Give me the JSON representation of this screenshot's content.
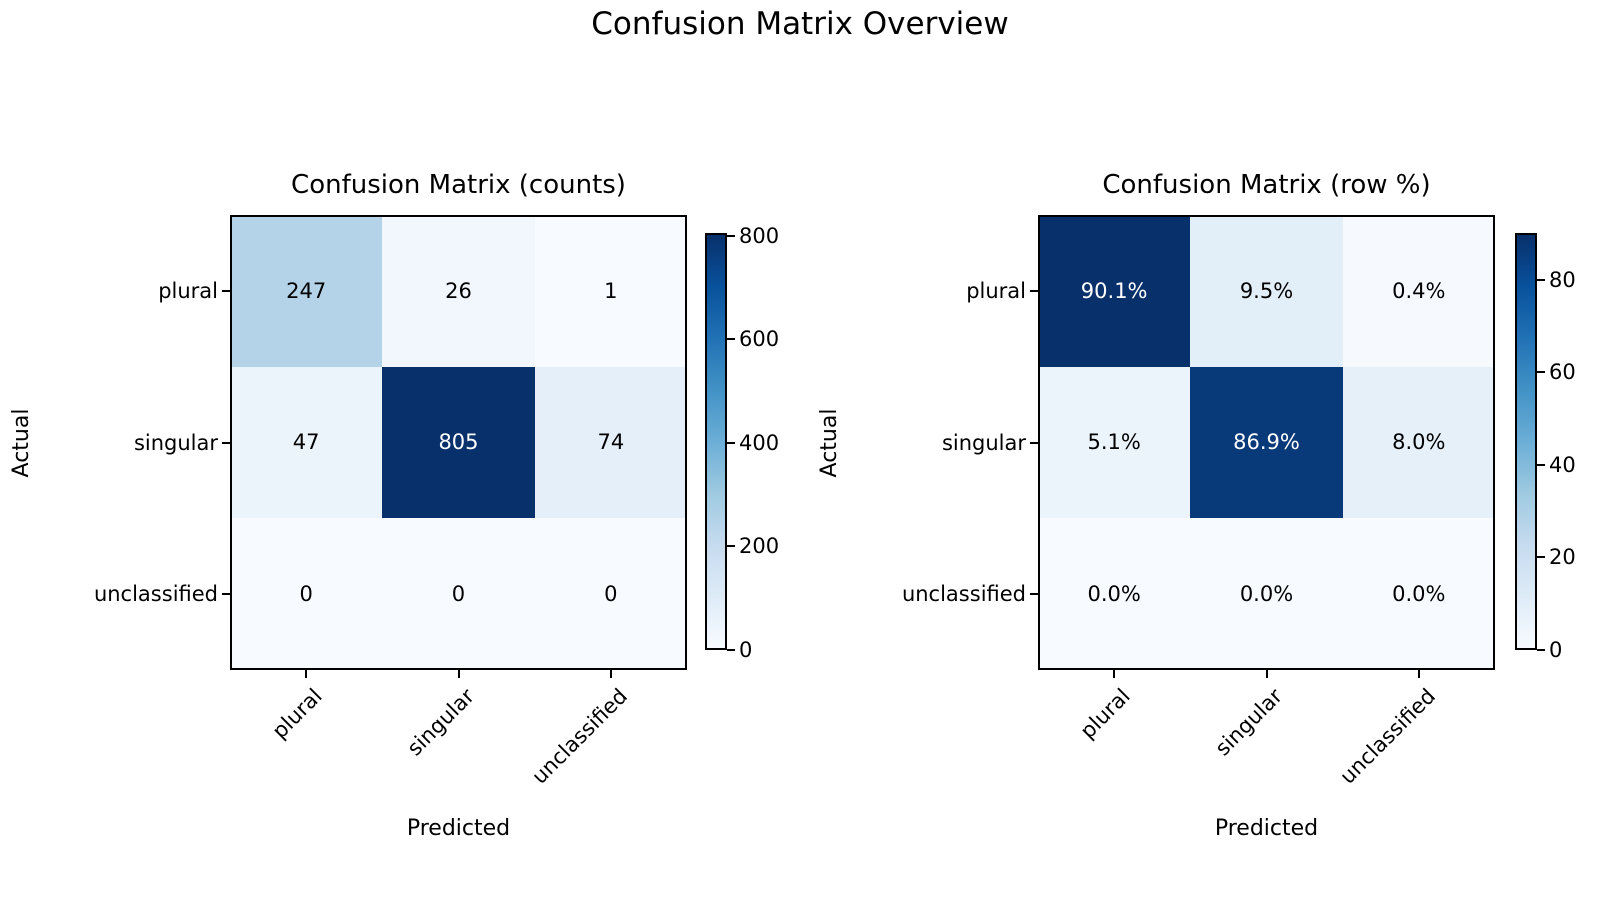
{
  "figure": {
    "title": "Confusion Matrix Overview",
    "background": "#ffffff",
    "text_color": "#000000"
  },
  "chart_data": [
    {
      "type": "heatmap",
      "title": "Confusion Matrix (counts)",
      "xlabel": "Predicted",
      "ylabel": "Actual",
      "x_categories": [
        "plural",
        "singular",
        "unclassified"
      ],
      "y_categories": [
        "plural",
        "singular",
        "unclassified"
      ],
      "values": [
        [
          247,
          26,
          1
        ],
        [
          47,
          805,
          74
        ],
        [
          0,
          0,
          0
        ]
      ],
      "cell_labels": [
        [
          "247",
          "26",
          "1"
        ],
        [
          "47",
          "805",
          "74"
        ],
        [
          "0",
          "0",
          "0"
        ]
      ],
      "vmin": 0,
      "vmax": 805,
      "colorbar_ticks": [
        800,
        600,
        400,
        200,
        0
      ],
      "colorbar_tick_labels": [
        "800",
        "600",
        "400",
        "200",
        "0"
      ],
      "colormap": "Blues",
      "x_tick_rotation_deg": 45,
      "grid": false,
      "legend": "colorbar-right"
    },
    {
      "type": "heatmap",
      "title": "Confusion Matrix (row %)",
      "xlabel": "Predicted",
      "ylabel": "Actual",
      "x_categories": [
        "plural",
        "singular",
        "unclassified"
      ],
      "y_categories": [
        "plural",
        "singular",
        "unclassified"
      ],
      "values": [
        [
          90.1,
          9.5,
          0.4
        ],
        [
          5.1,
          86.9,
          8.0
        ],
        [
          0.0,
          0.0,
          0.0
        ]
      ],
      "cell_labels": [
        [
          "90.1%",
          "9.5%",
          "0.4%"
        ],
        [
          "5.1%",
          "86.9%",
          "8.0%"
        ],
        [
          "0.0%",
          "0.0%",
          "0.0%"
        ]
      ],
      "vmin": 0,
      "vmax": 90.1,
      "colorbar_ticks": [
        80,
        60,
        40,
        20,
        0
      ],
      "colorbar_tick_labels": [
        "80",
        "60",
        "40",
        "20",
        "0"
      ],
      "colormap": "Blues",
      "x_tick_rotation_deg": 45,
      "grid": false,
      "legend": "colorbar-right"
    }
  ],
  "colors": {
    "colormap_stops": [
      "#f7fbff",
      "#deebf7",
      "#c6dbef",
      "#9ecae1",
      "#6baed6",
      "#4292c6",
      "#2171b5",
      "#08519c",
      "#08306b"
    ],
    "dark_cell_text": "#ffffff",
    "light_cell_text": "#000000",
    "axis_stroke": "#000000"
  }
}
